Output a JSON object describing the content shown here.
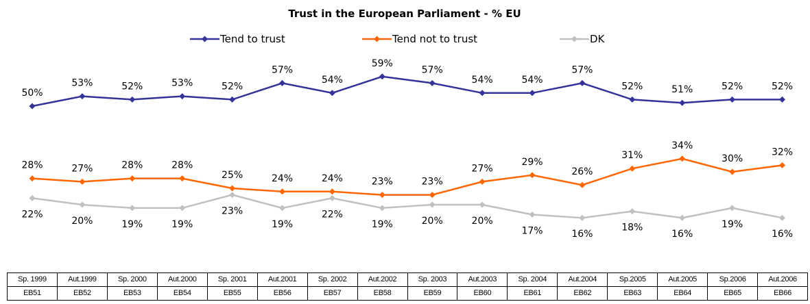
{
  "chart_data": {
    "type": "line",
    "title": "Trust in the European Parliament - % EU",
    "categories": [
      "Sp. 1999",
      "Aut.1999",
      "Sp. 2000",
      "Aut.2000",
      "Sp. 2001",
      "Aut.2001",
      "Sp. 2002",
      "Aut.2002",
      "Sp. 2003",
      "Aut.2003",
      "Sp. 2004",
      "Aut.2004",
      "Sp.2005",
      "Aut.2005",
      "Sp.2006",
      "Aut.2006"
    ],
    "category_codes": [
      "EB51",
      "EB52",
      "EB53",
      "EB54",
      "EB55",
      "EB56",
      "EB57",
      "EB58",
      "EB59",
      "EB60",
      "EB61",
      "EB62",
      "EB63",
      "EB64",
      "EB65",
      "EB66"
    ],
    "series": [
      {
        "name": "Tend to trust",
        "color": "#333399",
        "marker": "diamond",
        "values": [
          50,
          53,
          52,
          53,
          52,
          57,
          54,
          59,
          57,
          54,
          54,
          57,
          52,
          51,
          52,
          52
        ],
        "label_position": "above"
      },
      {
        "name": "Tend not to trust",
        "color": "#ff6600",
        "marker": "diamond",
        "values": [
          28,
          27,
          28,
          28,
          25,
          24,
          24,
          23,
          23,
          27,
          29,
          26,
          31,
          34,
          30,
          32
        ],
        "label_position": "above"
      },
      {
        "name": "DK",
        "color": "#c0c0c0",
        "marker": "diamond",
        "values": [
          22,
          20,
          19,
          19,
          23,
          19,
          22,
          19,
          20,
          20,
          17,
          16,
          18,
          16,
          19,
          16
        ],
        "label_position": "below"
      }
    ],
    "label_suffix": "%",
    "legend_position": "top",
    "grid": false
  }
}
